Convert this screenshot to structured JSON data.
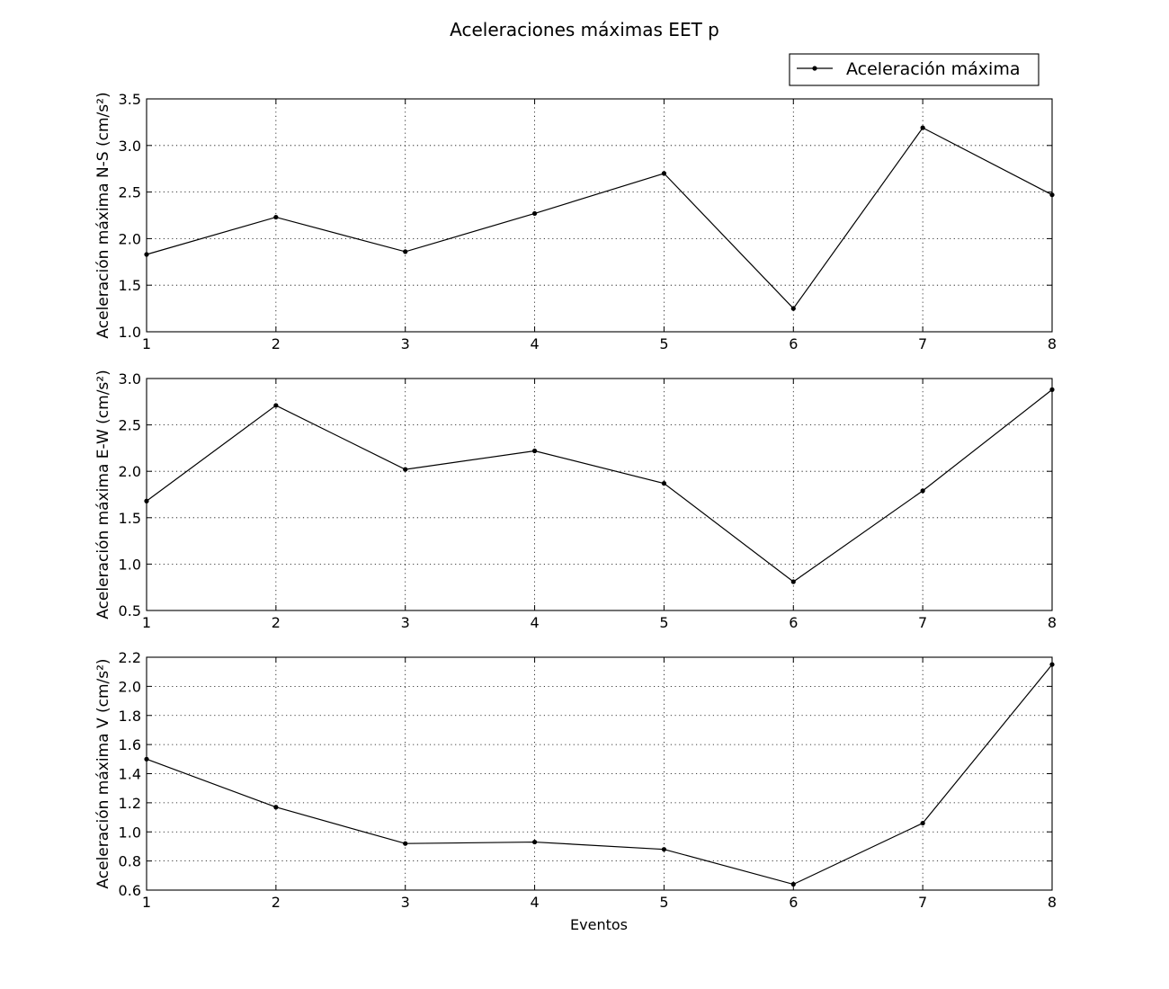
{
  "chart_data": {
    "type": "line",
    "title": "Aceleraciones máximas EET p",
    "xlabel": "Eventos",
    "legend": {
      "label": "Aceleración máxima",
      "placement": "top-right"
    },
    "grid": true,
    "x": [
      1,
      2,
      3,
      4,
      5,
      6,
      7,
      8
    ],
    "xlim": [
      1,
      8
    ],
    "xticks": [
      "1",
      "2",
      "3",
      "4",
      "5",
      "6",
      "7",
      "8"
    ],
    "colors": {
      "line": "#000000",
      "marker": "#000000"
    },
    "subplots": [
      {
        "ylabel": "Aceleración máxima N-S (cm/s²)",
        "ylim": [
          1.0,
          3.5
        ],
        "yticks": [
          "1.0",
          "1.5",
          "2.0",
          "2.5",
          "3.0",
          "3.5"
        ],
        "values": [
          1.83,
          2.23,
          1.86,
          2.27,
          2.7,
          1.25,
          3.19,
          2.47
        ]
      },
      {
        "ylabel": "Aceleración máxima E-W (cm/s²)",
        "ylim": [
          0.5,
          3.0
        ],
        "yticks": [
          "0.5",
          "1.0",
          "1.5",
          "2.0",
          "2.5",
          "3.0"
        ],
        "values": [
          1.68,
          2.71,
          2.02,
          2.22,
          1.87,
          0.81,
          1.79,
          2.88
        ]
      },
      {
        "ylabel": "Aceleración máxima V (cm/s²)",
        "ylim": [
          0.6,
          2.2
        ],
        "yticks": [
          "0.6",
          "0.8",
          "1.0",
          "1.2",
          "1.4",
          "1.6",
          "1.8",
          "2.0",
          "2.2"
        ],
        "values": [
          1.5,
          1.17,
          0.92,
          0.93,
          0.88,
          0.64,
          1.06,
          2.15
        ]
      }
    ]
  }
}
